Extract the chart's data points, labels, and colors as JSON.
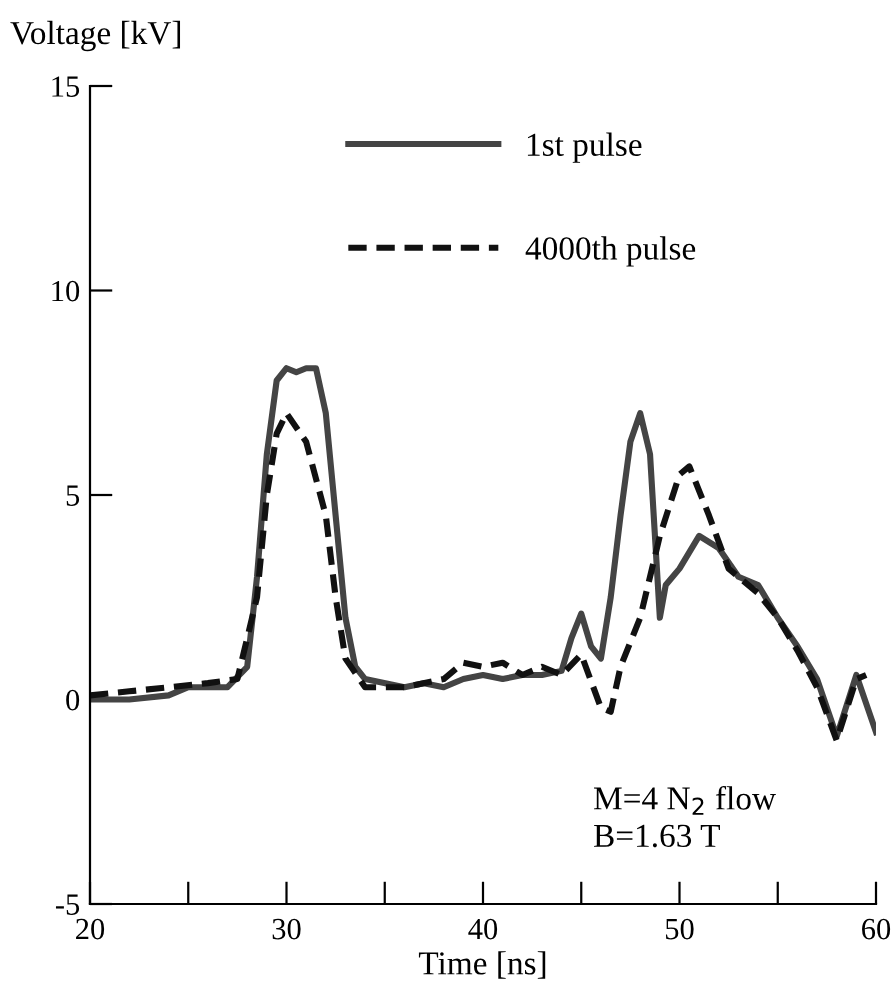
{
  "chart_data": {
    "type": "line",
    "xlabel": "Time [ns]",
    "ylabel": "Voltage [kV]",
    "xlim": [
      20,
      60
    ],
    "ylim": [
      -5,
      15
    ],
    "xticks": [
      20,
      {
        "value": 25,
        "label": null
      },
      30,
      {
        "value": 35,
        "label": null
      },
      40,
      {
        "value": 45,
        "label": null
      },
      50,
      {
        "value": 55,
        "label": null
      },
      60
    ],
    "yticks": [
      -5,
      0,
      5,
      10,
      15
    ],
    "grid": false,
    "legend": "top",
    "marker": "none",
    "annotations": [
      "M=4 N$_{2}$ flow\nB=1.63 T"
    ],
    "series": [
      {
        "name": "1st pulse",
        "color": "#444444",
        "line_style": "solid",
        "x": [
          20,
          22,
          24,
          25,
          27,
          28,
          28.5,
          29,
          29.5,
          30,
          30.5,
          31,
          31.5,
          32,
          32.5,
          33,
          33.5,
          34,
          36,
          37,
          38,
          39,
          40,
          41,
          42,
          43,
          44,
          44.5,
          45,
          45.5,
          46,
          46.5,
          47,
          47.5,
          48,
          48.5,
          49,
          49.3,
          50,
          51,
          52,
          53,
          54,
          55,
          56,
          57,
          58,
          59,
          60
        ],
        "values": [
          0,
          0,
          0.1,
          0.3,
          0.3,
          0.8,
          3,
          6,
          7.8,
          8.1,
          8.0,
          8.1,
          8.1,
          7,
          4.5,
          2,
          0.8,
          0.5,
          0.3,
          0.4,
          0.3,
          0.5,
          0.6,
          0.5,
          0.6,
          0.6,
          0.7,
          1.5,
          2.1,
          1.3,
          1.0,
          2.5,
          4.5,
          6.3,
          7.0,
          6,
          2.0,
          2.8,
          3.2,
          4.0,
          3.7,
          3.0,
          2.8,
          2.0,
          1.3,
          0.5,
          -0.9,
          0.6,
          -0.8
        ]
      },
      {
        "name": "4000th pulse",
        "color": "#111111",
        "line_style": "dashed",
        "x": [
          20,
          22,
          24,
          26,
          27.5,
          28.5,
          29,
          29.5,
          30,
          31,
          32,
          32.5,
          33,
          34,
          36,
          38,
          39,
          40,
          41,
          42,
          43,
          44,
          45,
          46,
          46.5,
          47,
          48,
          49,
          50,
          50.5,
          51.5,
          52.5,
          54,
          55,
          56,
          57,
          58,
          59,
          59.5
        ],
        "values": [
          0.1,
          0.2,
          0.3,
          0.4,
          0.5,
          2.5,
          5,
          6.5,
          7.0,
          6.3,
          4.5,
          2.5,
          1,
          0.3,
          0.3,
          0.5,
          0.9,
          0.8,
          0.9,
          0.6,
          0.8,
          0.6,
          1.1,
          -0.2,
          -0.3,
          0.8,
          2.0,
          4.0,
          5.5,
          5.7,
          4.5,
          3.2,
          2.6,
          2,
          1.2,
          0.3,
          -1,
          0.5,
          0.6
        ]
      }
    ]
  }
}
